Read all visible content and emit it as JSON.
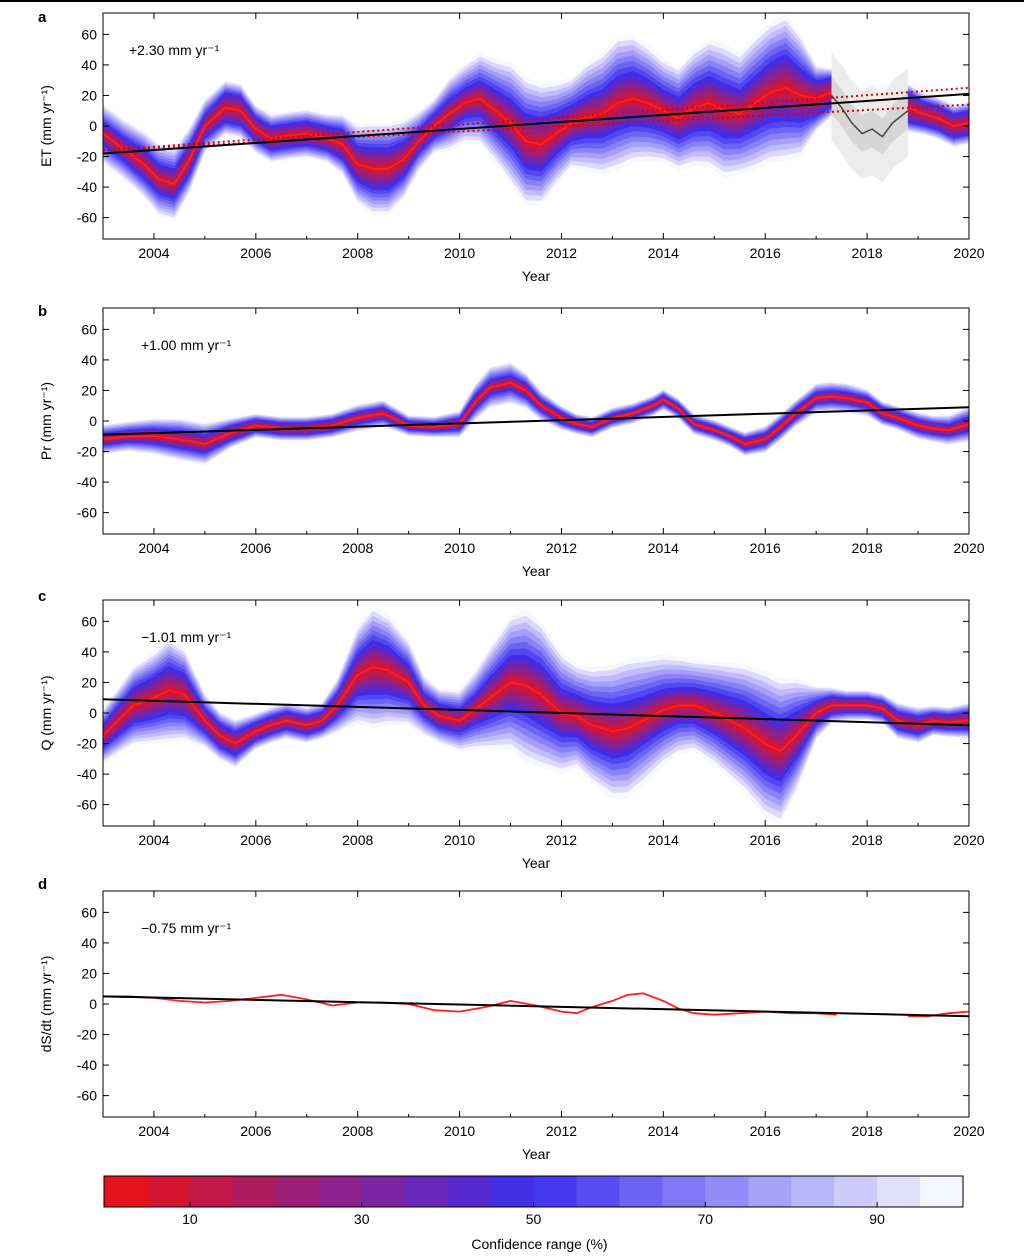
{
  "chart_data": [
    {
      "type": "line",
      "panel": "a",
      "ylabel": "ET (mm yr⁻¹)",
      "xlabel": "Year",
      "trend_label": "+2.30 mm yr⁻¹",
      "xlim": [
        2003,
        2020
      ],
      "ylim": [
        -74,
        74
      ],
      "yticks": [
        -60,
        -40,
        -20,
        0,
        20,
        40,
        60
      ],
      "xticks": [
        2004,
        2006,
        2008,
        2010,
        2012,
        2014,
        2016,
        2018,
        2020
      ],
      "trend_line": {
        "x": [
          2003,
          2020
        ],
        "y": [
          -18,
          21
        ]
      },
      "alt_trend_lines": [
        {
          "x": [
            2003,
            2020
          ],
          "y": [
            -16,
            25
          ]
        },
        {
          "x": [
            2003,
            2020
          ],
          "y": [
            -16,
            14
          ]
        }
      ],
      "gap_period": [
        2017.3,
        2018.8
      ],
      "gap_series": {
        "x": [
          2017.3,
          2017.5,
          2017.7,
          2017.9,
          2018.1,
          2018.3,
          2018.5,
          2018.8
        ],
        "y": [
          20,
          12,
          2,
          -5,
          -2,
          -7,
          2,
          10
        ]
      },
      "series": [
        {
          "x": [
            2003.0,
            2003.4,
            2003.8,
            2004.1,
            2004.4,
            2004.7,
            2005.0,
            2005.4,
            2005.7,
            2006.0,
            2006.3,
            2006.7,
            2007.0,
            2007.4,
            2007.7,
            2008.0,
            2008.3,
            2008.6,
            2008.9,
            2009.2,
            2009.5,
            2009.8,
            2010.1,
            2010.4,
            2010.7,
            2011.0,
            2011.3,
            2011.6,
            2011.9,
            2012.2,
            2012.5,
            2012.8,
            2013.1,
            2013.4,
            2013.7,
            2014.0,
            2014.3,
            2014.6,
            2014.9,
            2015.2,
            2015.5,
            2015.8,
            2016.1,
            2016.4,
            2016.7,
            2017.0,
            2017.3,
            2018.8,
            2019.1,
            2019.4,
            2019.7,
            2020.0
          ],
          "median": [
            -5,
            -15,
            -25,
            -35,
            -38,
            -22,
            0,
            12,
            10,
            -2,
            -8,
            -6,
            -5,
            -8,
            -12,
            -25,
            -28,
            -28,
            -22,
            -10,
            0,
            8,
            15,
            18,
            10,
            2,
            -10,
            -12,
            -5,
            2,
            6,
            8,
            15,
            18,
            15,
            10,
            5,
            12,
            15,
            10,
            8,
            15,
            22,
            25,
            20,
            18,
            22,
            12,
            8,
            5,
            0,
            2
          ],
          "inner": [
            8,
            8,
            10,
            10,
            10,
            10,
            8,
            10,
            10,
            8,
            8,
            8,
            8,
            8,
            10,
            12,
            14,
            14,
            12,
            8,
            8,
            10,
            10,
            12,
            14,
            16,
            18,
            18,
            14,
            12,
            14,
            16,
            18,
            18,
            16,
            14,
            14,
            16,
            18,
            18,
            16,
            18,
            20,
            22,
            18,
            12,
            10,
            10,
            8,
            8,
            8,
            8
          ],
          "outer": [
            20,
            20,
            22,
            24,
            24,
            22,
            18,
            18,
            18,
            16,
            16,
            16,
            16,
            16,
            20,
            26,
            30,
            30,
            26,
            20,
            18,
            24,
            26,
            30,
            34,
            40,
            42,
            40,
            34,
            30,
            36,
            40,
            44,
            42,
            38,
            34,
            34,
            38,
            42,
            44,
            40,
            44,
            46,
            48,
            40,
            22,
            16,
            16,
            14,
            14,
            14,
            14
          ]
        }
      ]
    },
    {
      "type": "line",
      "panel": "b",
      "ylabel": "Pr (mm yr⁻¹)",
      "xlabel": "Year",
      "trend_label": "+1.00 mm yr⁻¹",
      "xlim": [
        2003,
        2020
      ],
      "ylim": [
        -74,
        74
      ],
      "yticks": [
        -60,
        -40,
        -20,
        0,
        20,
        40,
        60
      ],
      "xticks": [
        2004,
        2006,
        2008,
        2010,
        2012,
        2014,
        2016,
        2018,
        2020
      ],
      "trend_line": {
        "x": [
          2003,
          2020
        ],
        "y": [
          -9,
          9
        ]
      },
      "series": [
        {
          "x": [
            2003.0,
            2003.5,
            2004.0,
            2004.5,
            2005.0,
            2005.5,
            2006.0,
            2006.5,
            2007.0,
            2007.5,
            2008.0,
            2008.5,
            2009.0,
            2009.5,
            2010.0,
            2010.3,
            2010.6,
            2011.0,
            2011.3,
            2011.6,
            2012.0,
            2012.3,
            2012.6,
            2013.0,
            2013.4,
            2013.8,
            2014.0,
            2014.3,
            2014.6,
            2015.0,
            2015.3,
            2015.6,
            2016.0,
            2016.3,
            2016.6,
            2017.0,
            2017.3,
            2017.6,
            2018.0,
            2018.3,
            2018.6,
            2019.0,
            2019.3,
            2019.6,
            2020.0
          ],
          "median": [
            -12,
            -10,
            -10,
            -12,
            -15,
            -8,
            -3,
            -5,
            -5,
            -3,
            2,
            5,
            -3,
            -4,
            -2,
            12,
            22,
            25,
            20,
            10,
            2,
            -2,
            -4,
            2,
            5,
            10,
            14,
            8,
            -2,
            -6,
            -10,
            -15,
            -12,
            -4,
            5,
            15,
            16,
            15,
            12,
            5,
            2,
            -3,
            -5,
            -6,
            -2
          ],
          "inner": [
            4,
            4,
            5,
            6,
            6,
            5,
            4,
            4,
            4,
            4,
            4,
            4,
            3,
            3,
            4,
            5,
            5,
            5,
            5,
            4,
            4,
            3,
            3,
            3,
            3,
            3,
            3,
            3,
            3,
            3,
            3,
            4,
            4,
            4,
            4,
            4,
            4,
            4,
            4,
            4,
            4,
            4,
            4,
            4,
            5
          ],
          "outer": [
            10,
            10,
            12,
            14,
            14,
            10,
            8,
            8,
            8,
            8,
            9,
            9,
            7,
            7,
            9,
            12,
            14,
            14,
            12,
            10,
            8,
            7,
            7,
            7,
            7,
            7,
            7,
            7,
            7,
            7,
            7,
            8,
            9,
            9,
            9,
            10,
            10,
            10,
            9,
            8,
            8,
            9,
            9,
            10,
            12
          ]
        }
      ]
    },
    {
      "type": "line",
      "panel": "c",
      "ylabel": "Q (mm yr⁻¹)",
      "xlabel": "Year",
      "trend_label": "−1.01 mm yr⁻¹",
      "xlim": [
        2003,
        2020
      ],
      "ylim": [
        -74,
        74
      ],
      "yticks": [
        -60,
        -40,
        -20,
        0,
        20,
        40,
        60
      ],
      "xticks": [
        2004,
        2006,
        2008,
        2010,
        2012,
        2014,
        2016,
        2018,
        2020
      ],
      "trend_line": {
        "x": [
          2003,
          2020
        ],
        "y": [
          9,
          -8
        ]
      },
      "series": [
        {
          "x": [
            2003.0,
            2003.3,
            2003.6,
            2004.0,
            2004.3,
            2004.6,
            2005.0,
            2005.3,
            2005.6,
            2006.0,
            2006.3,
            2006.6,
            2007.0,
            2007.3,
            2007.6,
            2008.0,
            2008.3,
            2008.6,
            2009.0,
            2009.3,
            2009.6,
            2010.0,
            2010.3,
            2010.6,
            2011.0,
            2011.3,
            2011.6,
            2012.0,
            2012.3,
            2012.6,
            2013.0,
            2013.3,
            2013.6,
            2014.0,
            2014.3,
            2014.6,
            2015.0,
            2015.3,
            2015.6,
            2016.0,
            2016.3,
            2016.6,
            2017.0,
            2017.3,
            2017.6,
            2018.0,
            2018.3,
            2018.6,
            2019.0,
            2019.3,
            2019.6,
            2020.0
          ],
          "median": [
            -15,
            -5,
            5,
            10,
            15,
            12,
            -5,
            -15,
            -20,
            -12,
            -8,
            -5,
            -8,
            -5,
            5,
            25,
            30,
            28,
            20,
            5,
            -2,
            -5,
            2,
            10,
            20,
            18,
            12,
            0,
            -2,
            -8,
            -12,
            -10,
            -5,
            2,
            5,
            5,
            0,
            -5,
            -10,
            -20,
            -25,
            -15,
            0,
            5,
            5,
            5,
            3,
            -5,
            -8,
            -5,
            -6,
            -5
          ],
          "inner": [
            8,
            10,
            12,
            14,
            16,
            14,
            8,
            8,
            8,
            6,
            6,
            6,
            6,
            6,
            8,
            14,
            18,
            16,
            12,
            8,
            8,
            8,
            10,
            14,
            18,
            20,
            20,
            16,
            14,
            16,
            18,
            18,
            16,
            14,
            12,
            12,
            14,
            16,
            18,
            20,
            20,
            16,
            8,
            6,
            5,
            5,
            5,
            6,
            6,
            5,
            5,
            6
          ],
          "outer": [
            18,
            22,
            26,
            30,
            34,
            30,
            18,
            16,
            16,
            12,
            12,
            12,
            12,
            12,
            18,
            32,
            40,
            36,
            28,
            20,
            18,
            20,
            26,
            34,
            44,
            50,
            48,
            40,
            34,
            38,
            44,
            46,
            42,
            36,
            32,
            30,
            34,
            38,
            42,
            48,
            48,
            38,
            18,
            12,
            10,
            10,
            10,
            12,
            12,
            10,
            10,
            12
          ]
        }
      ]
    },
    {
      "type": "line",
      "panel": "d",
      "ylabel": "dS/dt (mm yr⁻¹)",
      "xlabel": "Year",
      "trend_label": "−0.75 mm yr⁻¹",
      "xlim": [
        2003,
        2020
      ],
      "ylim": [
        -74,
        74
      ],
      "yticks": [
        -60,
        -40,
        -20,
        0,
        20,
        40,
        60
      ],
      "xticks": [
        2004,
        2006,
        2008,
        2010,
        2012,
        2014,
        2016,
        2018,
        2020
      ],
      "trend_line": {
        "x": [
          2003,
          2020
        ],
        "y": [
          5,
          -8
        ]
      },
      "series": [
        {
          "segments": [
            {
              "x": [
                2003.0,
                2003.5,
                2004.0,
                2004.5,
                2005.0,
                2005.5,
                2006.0,
                2006.5,
                2007.0,
                2007.5,
                2008.0,
                2008.5,
                2009.0,
                2009.5,
                2010.0,
                2010.5,
                2011.0,
                2011.5,
                2012.0,
                2012.3,
                2012.6,
                2013.0,
                2013.3,
                2013.6,
                2014.0,
                2014.3,
                2014.6,
                2015.0,
                2015.5,
                2016.0,
                2016.5,
                2017.0,
                2017.4
              ],
              "y": [
                5,
                5,
                4,
                2,
                1,
                2,
                4,
                6,
                3,
                -1,
                1,
                1,
                0,
                -4,
                -5,
                -2,
                2,
                -1,
                -5,
                -6,
                -2,
                2,
                6,
                7,
                2,
                -3,
                -6,
                -7,
                -6,
                -5,
                -6,
                -6,
                -7
              ]
            },
            {
              "x": [
                2018.8,
                2019.2,
                2019.6,
                2020.0
              ],
              "y": [
                -8,
                -8,
                -6,
                -5
              ]
            }
          ]
        }
      ]
    }
  ],
  "colorbar": {
    "label": "Confidence range (%)",
    "ticks": [
      10,
      30,
      50,
      70,
      90
    ],
    "range": [
      0,
      100
    ],
    "low_color": "#ee1111",
    "mid_color": "#3b2ef0",
    "high_color": "#ffffff"
  },
  "colors": {
    "median": "#ff1e1e",
    "trend": "#000000",
    "alt_trend": "#dd0000",
    "gap_line": "#444444",
    "gap_band": "#dcdcdc"
  }
}
